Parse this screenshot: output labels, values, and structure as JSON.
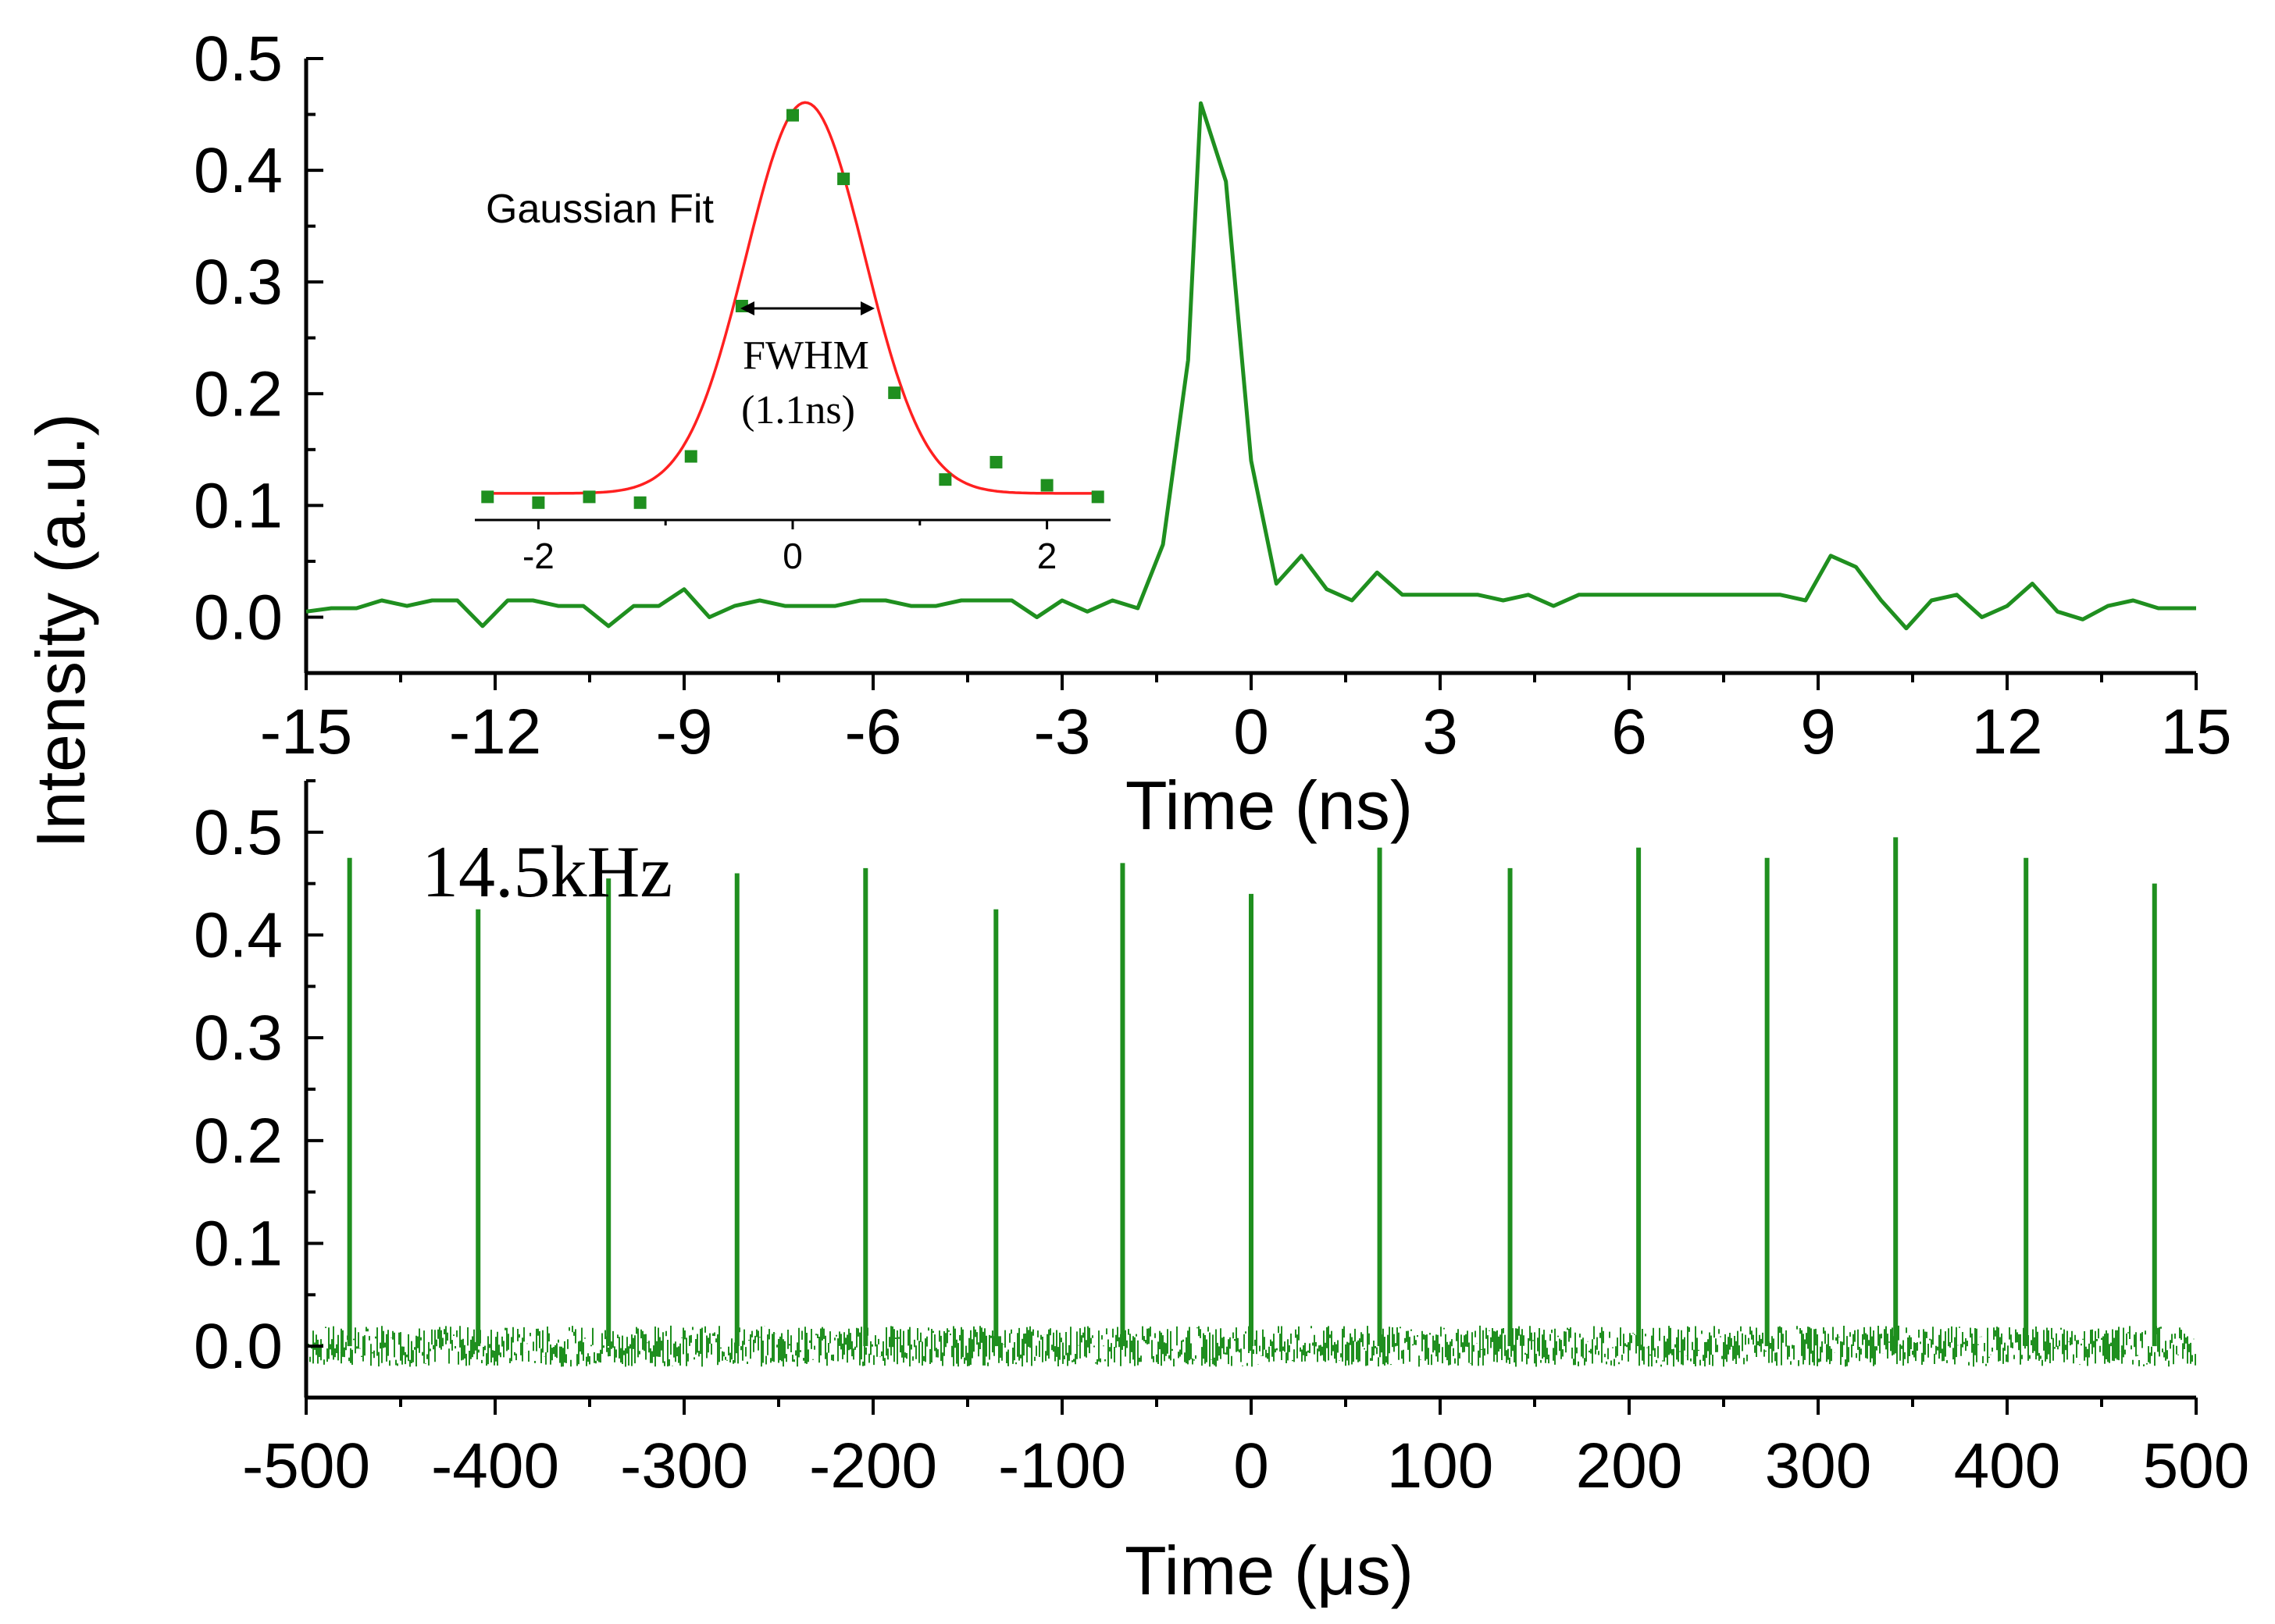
{
  "chart_data": [
    {
      "type": "line",
      "panel": "top",
      "xlabel": "Time (ns)",
      "ylabel": "Intensity (a.u.)",
      "xlim": [
        -15,
        15
      ],
      "ylim": [
        -0.05,
        0.5
      ],
      "xticks": [
        "-15",
        "-12",
        "-9",
        "-6",
        "-3",
        "0",
        "3",
        "6",
        "9",
        "12",
        "15"
      ],
      "yticks": [
        "0.0",
        "0.1",
        "0.2",
        "0.3",
        "0.4",
        "0.5"
      ],
      "series": [
        {
          "name": "pulse",
          "color": "#1f8f1f",
          "x": [
            -15,
            -14.6,
            -14.2,
            -13.8,
            -13.4,
            -13.0,
            -12.6,
            -12.2,
            -11.8,
            -11.4,
            -11.0,
            -10.6,
            -10.2,
            -9.8,
            -9.4,
            -9.0,
            -8.6,
            -8.2,
            -7.8,
            -7.4,
            -7.0,
            -6.6,
            -6.2,
            -5.8,
            -5.4,
            -5.0,
            -4.6,
            -4.2,
            -3.8,
            -3.4,
            -3.0,
            -2.6,
            -2.2,
            -1.8,
            -1.4,
            -1.0,
            -0.8,
            -0.4,
            0.0,
            0.4,
            0.8,
            1.2,
            1.6,
            2.0,
            2.4,
            2.8,
            3.2,
            3.6,
            4.0,
            4.4,
            4.8,
            5.2,
            5.6,
            6.0,
            6.4,
            6.8,
            7.2,
            7.6,
            8.0,
            8.4,
            8.8,
            9.2,
            9.6,
            10.0,
            10.4,
            10.8,
            11.2,
            11.6,
            12.0,
            12.4,
            12.8,
            13.2,
            13.6,
            14.0,
            14.4,
            14.8,
            15.0
          ],
          "y": [
            0.005,
            0.008,
            0.008,
            0.015,
            0.01,
            0.015,
            0.015,
            -0.008,
            0.015,
            0.015,
            0.01,
            0.01,
            -0.008,
            0.01,
            0.01,
            0.025,
            0.0,
            0.01,
            0.015,
            0.01,
            0.01,
            0.01,
            0.015,
            0.015,
            0.01,
            0.01,
            0.015,
            0.015,
            0.015,
            0.0,
            0.015,
            0.005,
            0.015,
            0.008,
            0.065,
            0.23,
            0.46,
            0.39,
            0.14,
            0.03,
            0.055,
            0.025,
            0.015,
            0.04,
            0.02,
            0.02,
            0.02,
            0.02,
            0.015,
            0.02,
            0.01,
            0.02,
            0.02,
            0.02,
            0.02,
            0.02,
            0.02,
            0.02,
            0.02,
            0.02,
            0.015,
            0.055,
            0.045,
            0.015,
            -0.01,
            0.015,
            0.02,
            0.0,
            0.01,
            0.03,
            0.005,
            -0.002,
            0.01,
            0.015,
            0.008,
            0.008,
            0.008
          ]
        }
      ]
    },
    {
      "type": "scatter",
      "panel": "inset",
      "title": "Gaussian Fit",
      "xlim": [
        -2.5,
        2.5
      ],
      "ylim": [
        0.1,
        0.47
      ],
      "xticks": [
        "-2",
        "0",
        "2"
      ],
      "annotation_label": "FWHM",
      "annotation_value": "(1.1ns)",
      "series": [
        {
          "name": "data",
          "color": "#1f8f1f",
          "x": [
            -2.4,
            -2.0,
            -1.6,
            -1.2,
            -0.8,
            -0.4,
            0.0,
            0.4,
            0.8,
            1.2,
            1.6,
            2.0,
            2.4
          ],
          "y": [
            0.12,
            0.115,
            0.12,
            0.115,
            0.155,
            0.285,
            0.45,
            0.395,
            0.21,
            0.135,
            0.15,
            0.13,
            0.12
          ]
        },
        {
          "name": "Gaussian Fit",
          "color": "#ff2020",
          "type": "line",
          "baseline": 0.123,
          "amplitude": 0.338,
          "center": 0.1,
          "fwhm": 1.1
        }
      ]
    },
    {
      "type": "line",
      "panel": "bottom",
      "xlabel": "Time (μs)",
      "annotation": "14.5kHz",
      "xlim": [
        -500,
        500
      ],
      "ylim": [
        -0.05,
        0.55
      ],
      "xticks": [
        "-500",
        "-400",
        "-300",
        "-200",
        "-100",
        "0",
        "100",
        "200",
        "300",
        "400",
        "500"
      ],
      "yticks": [
        "0.0",
        "0.1",
        "0.2",
        "0.3",
        "0.4",
        "0.5"
      ],
      "series": [
        {
          "name": "pulse train",
          "color": "#1f8f1f",
          "x": [
            -477,
            -409,
            -340,
            -272,
            -204,
            -135,
            -68,
            0,
            68,
            137,
            205,
            273,
            341,
            410,
            478
          ],
          "y": [
            0.475,
            0.425,
            0.455,
            0.46,
            0.465,
            0.425,
            0.47,
            0.44,
            0.485,
            0.465,
            0.485,
            0.475,
            0.495,
            0.475,
            0.45
          ]
        }
      ]
    }
  ]
}
